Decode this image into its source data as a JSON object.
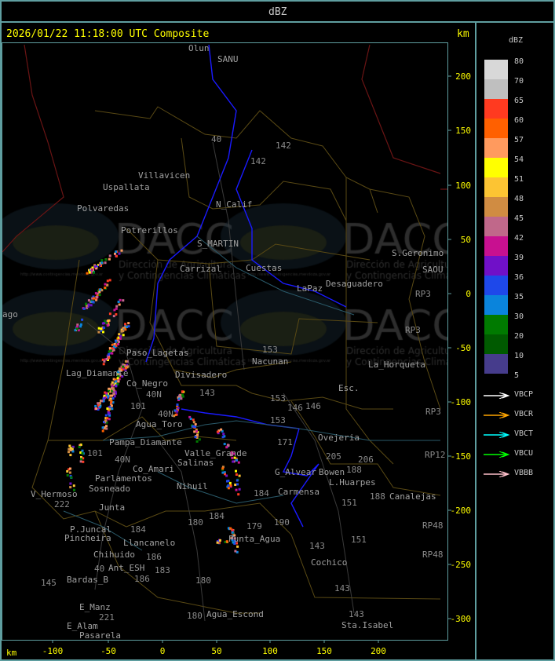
{
  "header": {
    "title": "dBZ"
  },
  "map": {
    "timestamp": "2026/01/22 11:18:00 UTC Composite",
    "unit_top": "km",
    "unit_bottom": "km",
    "x_ticks": [
      "-100",
      "-50",
      "0",
      "50",
      "100",
      "150",
      "200"
    ],
    "y_ticks": [
      "200",
      "150",
      "100",
      "50",
      "0",
      "-50",
      "-100",
      "-150",
      "-200",
      "-250",
      "-300"
    ],
    "watermark": {
      "logo": "DACC",
      "line1": "Dirección de Agricultura",
      "line2": "y Contingencias Climáticas",
      "url": "http://www.contingencias.mendoza.gov.ar"
    },
    "places": [
      "Olun",
      "SANU",
      "Villavicen",
      "Uspallata",
      "Polvaredas",
      "Potrerillos",
      "N_Calif",
      "S_MARTIN",
      "Carrizal",
      "Cuestas",
      "Desaguadero",
      "LaPaz",
      "S.Geronimo",
      "SAOU",
      "Lag_Diamante",
      "Co_Negro",
      "Divisadero",
      "Paso_Lagetas",
      "Nacunan",
      "La_Horqueta",
      "Esc.",
      "Agua_Toro",
      "Pampa_Diamante",
      "Valle_Grande",
      "Salinas",
      "Co_Amari",
      "Parlamentos",
      "Sosneado",
      "V_Hermoso",
      "Nihuil",
      "G_Alvear",
      "Bowen",
      "Carmensa",
      "L.Huarpes",
      "Canalejas",
      "Ovejeria",
      "Junta",
      "P.Juncal",
      "Pincheira",
      "Llancanelo",
      "Punta_Agua",
      "Chihuido",
      "Ant_ESH",
      "Bardas_B",
      "Cochico",
      "E_Manz",
      "E_Alam",
      "Pasarela",
      "Sta.Isabel",
      "Agua_Escond",
      "ago"
    ],
    "routes": [
      "40",
      "142",
      "142",
      "153",
      "153",
      "153",
      "146",
      "146",
      "143",
      "171",
      "205",
      "206",
      "188",
      "151",
      "151",
      "184",
      "184",
      "180",
      "179",
      "190",
      "143",
      "143",
      "40N",
      "40N",
      "101",
      "101",
      "40N",
      "184",
      "186",
      "186",
      "183",
      "180",
      "145",
      "221",
      "222",
      "RP3",
      "RP3",
      "RP3",
      "RP12",
      "RP48",
      "RP48",
      "188",
      "143",
      "180",
      "40"
    ]
  },
  "legend": {
    "title": "dBZ",
    "levels": [
      {
        "label": "80",
        "color": "#d8d8d8"
      },
      {
        "label": "70",
        "color": "#bfbfbf"
      },
      {
        "label": "65",
        "color": "#ff3a20"
      },
      {
        "label": "60",
        "color": "#ff6000"
      },
      {
        "label": "57",
        "color": "#ff9a5e"
      },
      {
        "label": "54",
        "color": "#ffff00"
      },
      {
        "label": "51",
        "color": "#fcc433"
      },
      {
        "label": "48",
        "color": "#d08c42"
      },
      {
        "label": "45",
        "color": "#c0688a"
      },
      {
        "label": "42",
        "color": "#c81090"
      },
      {
        "label": "39",
        "color": "#7010c8"
      },
      {
        "label": "36",
        "color": "#1e48ea"
      },
      {
        "label": "35",
        "color": "#0a84dc"
      },
      {
        "label": "30",
        "color": "#007a00"
      },
      {
        "label": "20",
        "color": "#005a00"
      },
      {
        "label": "10",
        "color": "#463c8c"
      }
    ],
    "bottom_label": "5",
    "radars": [
      {
        "name": "VBCP",
        "color": "#ffffff"
      },
      {
        "name": "VBCR",
        "color": "#ffa500"
      },
      {
        "name": "VBCT",
        "color": "#00ffff"
      },
      {
        "name": "VBCU",
        "color": "#00ff00"
      },
      {
        "name": "VBBB",
        "color": "#ffc0cb"
      }
    ]
  }
}
